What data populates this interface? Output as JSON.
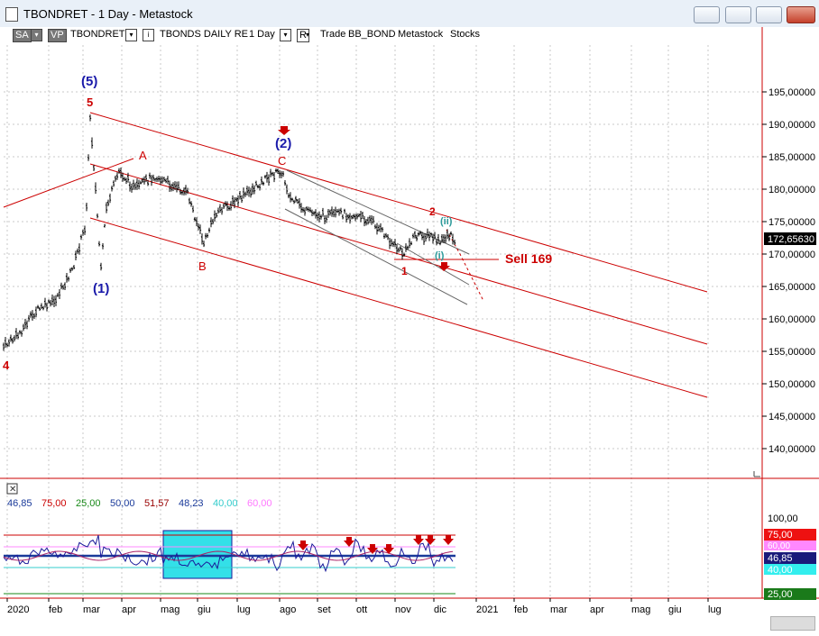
{
  "window": {
    "title": "TBONDRET - 1 Day - Metastock"
  },
  "toolbar": {
    "sa": "SA",
    "vp": "VP",
    "symbol": "TBONDRET",
    "symbol_desc": "TBONDS DAILY RE",
    "period": "1 Day",
    "r": "R",
    "trade": "Trade",
    "sector": "BB_BOND",
    "source": "Metastock",
    "type": "Stocks"
  },
  "price_axis": {
    "ticks": [
      "195,00000",
      "190,00000",
      "185,00000",
      "180,00000",
      "175,00000",
      "170,00000",
      "165,00000",
      "160,00000",
      "155,00000",
      "150,00000",
      "145,00000",
      "140,00000"
    ],
    "last_price": "172,65630"
  },
  "annotations": {
    "wave5_paren": "(5)",
    "wave5": "5",
    "waveA": "A",
    "waveB": "B",
    "wave1_paren": "(1)",
    "wave2_paren": "(2)",
    "waveC": "C",
    "wave4": "4",
    "wave_small1": "1",
    "wave_small2": "2",
    "wave_i": "(i)",
    "wave_ii": "(ii)",
    "sell": "Sell 169"
  },
  "indicator": {
    "values": [
      "46,85",
      "75,00",
      "25,00",
      "50,00",
      "51,57",
      "48,23",
      "40,00",
      "60,00"
    ],
    "value_colors": [
      "#1a3a9a",
      "#cc0000",
      "#1a8a1a",
      "#1a3a9a",
      "#990000",
      "#1a3a9a",
      "#33cccc",
      "#ff77ff"
    ],
    "axis_ticks": [
      "100,00",
      "75,00",
      "60,00",
      "46,85",
      "40,00",
      "25,00"
    ]
  },
  "time_axis": [
    "2020",
    "feb",
    "mar",
    "apr",
    "mag",
    "giu",
    "lug",
    "ago",
    "set",
    "ott",
    "nov",
    "dic",
    "2021",
    "feb",
    "mar",
    "apr",
    "mag",
    "giu",
    "lug"
  ],
  "colors": {
    "title_bar": "#e9f0f8",
    "channel": "#cc0000",
    "wave_blue": "#1a1aaa",
    "sell": "#cc0000"
  }
}
